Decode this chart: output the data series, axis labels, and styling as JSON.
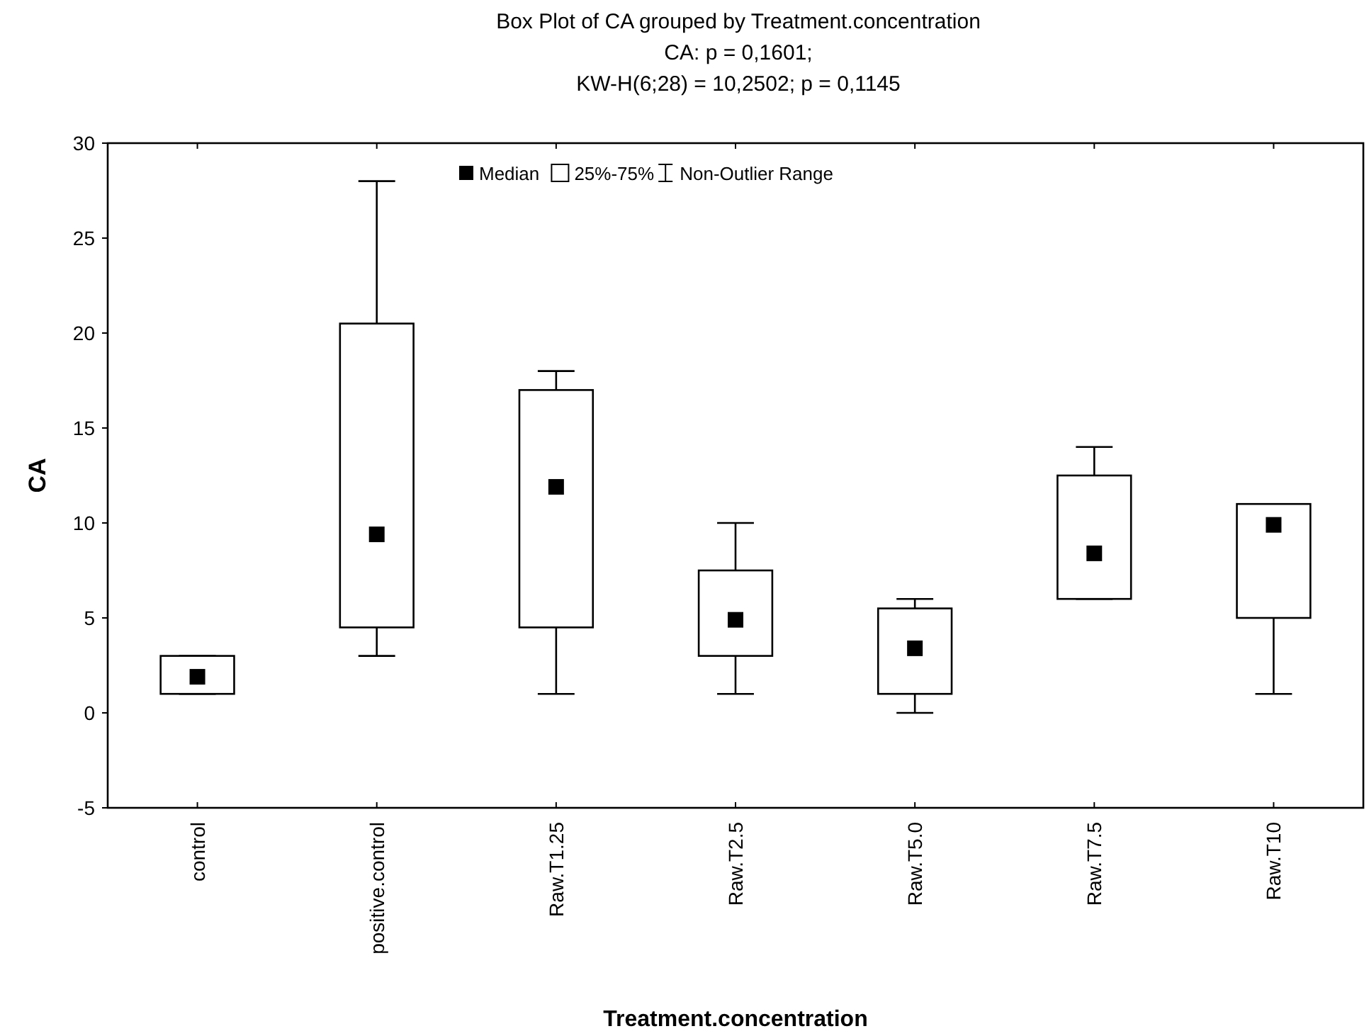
{
  "chart_data": {
    "type": "box",
    "title": "Box Plot of CA grouped by  Treatment.concentration",
    "subtitle": "CA: p = 0,1601;\nKW-H(6;28) = 10,2502; p = 0,1145",
    "xlabel": "Treatment.concentration",
    "ylabel": "CA",
    "categories": [
      "control",
      "positive.control",
      "Raw.T1.25",
      "Raw.T2.5",
      "Raw.T5.0",
      "Raw.T7.5",
      "Raw.T10"
    ],
    "boxes": [
      {
        "low": 1,
        "q1": 1,
        "median": 1.9,
        "q3": 3,
        "high": 3
      },
      {
        "low": 3,
        "q1": 4.5,
        "median": 9.4,
        "q3": 20.5,
        "high": 28
      },
      {
        "low": 1,
        "q1": 4.5,
        "median": 11.9,
        "q3": 17,
        "high": 18
      },
      {
        "low": 1,
        "q1": 3,
        "median": 4.9,
        "q3": 7.5,
        "high": 10
      },
      {
        "low": 0,
        "q1": 1,
        "median": 3.4,
        "q3": 5.5,
        "high": 6
      },
      {
        "low": 6,
        "q1": 6,
        "median": 8.4,
        "q3": 12.5,
        "high": 14
      },
      {
        "low": 1,
        "q1": 5,
        "median": 9.9,
        "q3": 11,
        "high": 11
      }
    ],
    "color": "#000000",
    "ylim": [
      -5,
      30
    ],
    "yticks": [
      -5,
      0,
      5,
      10,
      15,
      20,
      25,
      30
    ],
    "grid": false,
    "annotations": [
      "Median",
      "25%-75%",
      "Non-Outlier Range"
    ]
  }
}
